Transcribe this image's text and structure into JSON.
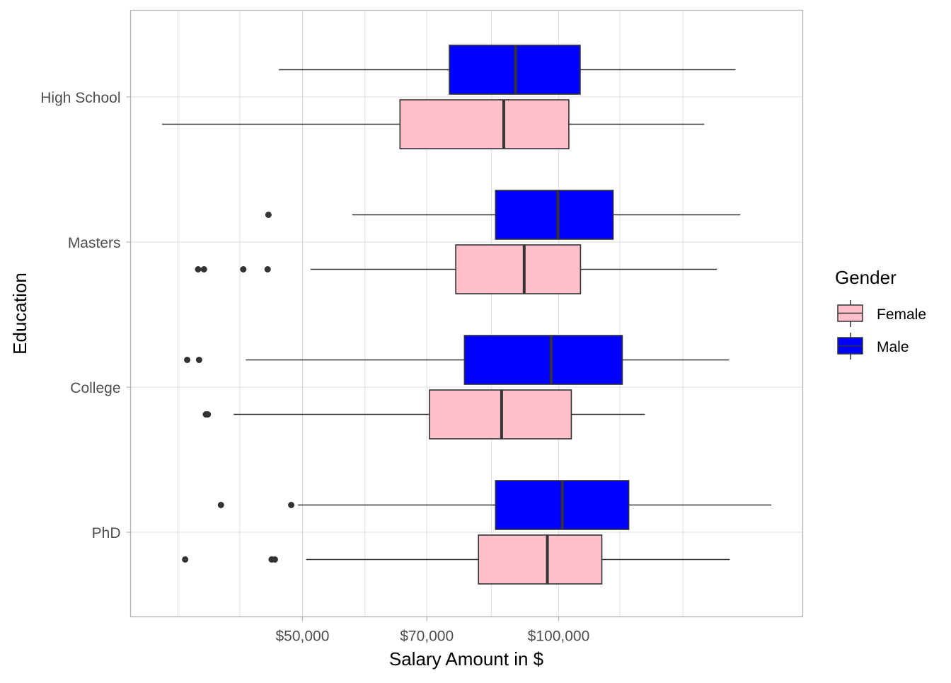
{
  "chart_data": {
    "type": "boxplot",
    "orientation": "horizontal",
    "x_scale": "log10",
    "xlabel": "Salary Amount in $",
    "ylabel": "Education",
    "xlim": [
      31400,
      193600
    ],
    "x_ticks": [
      {
        "value": 50000,
        "label": "$50,000"
      },
      {
        "value": 70000,
        "label": "$70,000"
      },
      {
        "value": 100000,
        "label": "$100,000"
      }
    ],
    "x_gridlines": [
      35700,
      42200,
      50000,
      59200,
      70000,
      83400,
      100000,
      118000,
      140000
    ],
    "categories": [
      "High School",
      "Masters",
      "College",
      "PhD"
    ],
    "grid": true,
    "legend": {
      "title": "Gender",
      "placement": "right",
      "entries": [
        {
          "name": "Female",
          "color": "#FFC0CB"
        },
        {
          "name": "Male",
          "color": "#0000FF"
        }
      ]
    },
    "series": [
      {
        "name": "Male",
        "color": "#0000FF",
        "boxes": [
          {
            "category": "High School",
            "lower_whisker": 46900,
            "q1": 74400,
            "median": 89000,
            "q3": 106000,
            "upper_whisker": 161400,
            "outliers": []
          },
          {
            "category": "Masters",
            "lower_whisker": 57200,
            "q1": 84300,
            "median": 99800,
            "q3": 115900,
            "upper_whisker": 163500,
            "outliers": [
              45600
            ]
          },
          {
            "category": "College",
            "lower_whisker": 42900,
            "q1": 77500,
            "median": 98000,
            "q3": 118800,
            "upper_whisker": 158600,
            "outliers": [
              36600,
              37800
            ]
          },
          {
            "category": "PhD",
            "lower_whisker": 49400,
            "q1": 84300,
            "median": 101000,
            "q3": 120900,
            "upper_whisker": 177800,
            "outliers": [
              40100,
              48500
            ]
          }
        ]
      },
      {
        "name": "Female",
        "color": "#FFC0CB",
        "boxes": [
          {
            "category": "High School",
            "lower_whisker": 34200,
            "q1": 65100,
            "median": 86200,
            "q3": 102800,
            "upper_whisker": 148300,
            "outliers": []
          },
          {
            "category": "Masters",
            "lower_whisker": 51100,
            "q1": 75700,
            "median": 91100,
            "q3": 106100,
            "upper_whisker": 153500,
            "outliers": [
              37700,
              38300,
              42600,
              45500
            ]
          },
          {
            "category": "College",
            "lower_whisker": 41500,
            "q1": 70500,
            "median": 85700,
            "q3": 103500,
            "upper_whisker": 126300,
            "outliers": [
              38500,
              38700
            ]
          },
          {
            "category": "PhD",
            "lower_whisker": 50500,
            "q1": 80500,
            "median": 97000,
            "q3": 112400,
            "upper_whisker": 158900,
            "outliers": [
              36400,
              46000,
              46400
            ]
          }
        ]
      }
    ]
  }
}
